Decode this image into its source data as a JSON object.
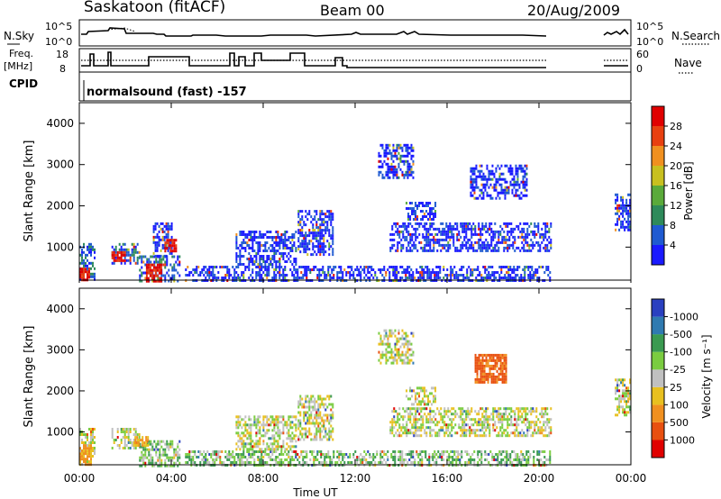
{
  "header": {
    "station": "Saskatoon (fitACF)",
    "beam": "Beam 00",
    "date": "20/Aug/2009"
  },
  "nsky_panel": {
    "left_label": "N.Sky",
    "left_ticks": [
      "10^5",
      "10^0"
    ],
    "right_ticks": [
      "10^5",
      "10^0"
    ],
    "right_label": "N.Search"
  },
  "freq_panel": {
    "left_label_1": "Freq.",
    "left_label_2": "[MHz]",
    "left_ticks": [
      "18",
      "8"
    ],
    "right_ticks": [
      "60",
      "0"
    ],
    "right_label": "Nave"
  },
  "cpid_panel": {
    "label": "CPID",
    "text": "normalsound (fast) -157"
  },
  "chart_data": [
    {
      "type": "heatmap",
      "name": "power",
      "ylabel": "Slant Range [km]",
      "yticks": [
        1000,
        2000,
        3000,
        4000
      ],
      "ylim": [
        200,
        4500
      ],
      "xlim": [
        0,
        24
      ],
      "colorbar_label": "Power [dB]",
      "colorbar_ticks": [
        "4",
        "8",
        "12",
        "16",
        "20",
        "24",
        "28"
      ],
      "colorbar_colors": [
        "#1a1aff",
        "#1f5ad1",
        "#2e8a5a",
        "#5aaa3a",
        "#c8c020",
        "#f09020",
        "#e84010",
        "#e00000"
      ],
      "echo_regions": [
        {
          "t0": 0.0,
          "t1": 0.7,
          "r0": 200,
          "r1": 1100,
          "c": 1
        },
        {
          "t0": 1.4,
          "t1": 2.6,
          "r0": 600,
          "r1": 1100,
          "c": 1
        },
        {
          "t0": 2.6,
          "t1": 4.4,
          "r0": 200,
          "r1": 800,
          "c": 1
        },
        {
          "t0": 3.2,
          "t1": 4.0,
          "r0": 800,
          "r1": 1600,
          "c": 0
        },
        {
          "t0": 4.6,
          "t1": 20.5,
          "r0": 200,
          "r1": 550,
          "c": 0
        },
        {
          "t0": 6.8,
          "t1": 9.4,
          "r0": 550,
          "r1": 1400,
          "c": 0
        },
        {
          "t0": 9.5,
          "t1": 11.0,
          "r0": 800,
          "r1": 1900,
          "c": 0
        },
        {
          "t0": 13.5,
          "t1": 20.5,
          "r0": 900,
          "r1": 1600,
          "c": 0
        },
        {
          "t0": 14.2,
          "t1": 15.5,
          "r0": 1700,
          "r1": 2100,
          "c": 0
        },
        {
          "t0": 13.0,
          "t1": 14.5,
          "r0": 2700,
          "r1": 3500,
          "c": 0
        },
        {
          "t0": 17.0,
          "t1": 19.5,
          "r0": 2200,
          "r1": 3000,
          "c": 0
        },
        {
          "t0": 23.3,
          "t1": 24.0,
          "r0": 1400,
          "r1": 2300,
          "c": 0
        }
      ],
      "hot_spots": [
        {
          "t0": 0.0,
          "t1": 0.4,
          "r0": 200,
          "r1": 500
        },
        {
          "t0": 2.9,
          "t1": 3.6,
          "r0": 200,
          "r1": 600
        },
        {
          "t0": 1.4,
          "t1": 2.0,
          "r0": 700,
          "r1": 900
        },
        {
          "t0": 3.7,
          "t1": 4.2,
          "r0": 900,
          "r1": 1200
        }
      ]
    },
    {
      "type": "heatmap",
      "name": "velocity",
      "ylabel": "Slant Range [km]",
      "yticks": [
        1000,
        2000,
        3000,
        4000
      ],
      "ylim": [
        200,
        4500
      ],
      "xlim": [
        0,
        24
      ],
      "xticks": [
        "00:00",
        "04:00",
        "08:00",
        "12:00",
        "16:00",
        "20:00",
        "00:00"
      ],
      "xlabel": "Time UT",
      "colorbar_label": "Velocity [m s⁻¹]",
      "colorbar_ticks": [
        "1000",
        "500",
        "100",
        "25",
        "-25",
        "-100",
        "-500",
        "-1000"
      ],
      "colorbar_colors": [
        "#2a40c0",
        "#2f7ab0",
        "#3a9a50",
        "#7acc40",
        "#c0c0c0",
        "#e8c020",
        "#f09020",
        "#e85010",
        "#e00000"
      ],
      "echo_regions": [
        {
          "t0": 0.0,
          "t1": 0.7,
          "r0": 200,
          "r1": 1100,
          "c": 4
        },
        {
          "t0": 1.4,
          "t1": 2.6,
          "r0": 600,
          "r1": 1100,
          "c": 4
        },
        {
          "t0": 2.6,
          "t1": 4.4,
          "r0": 200,
          "r1": 800,
          "c": 3
        },
        {
          "t0": 4.6,
          "t1": 20.5,
          "r0": 200,
          "r1": 550,
          "c": 3
        },
        {
          "t0": 6.8,
          "t1": 9.4,
          "r0": 550,
          "r1": 1400,
          "c": 4
        },
        {
          "t0": 9.5,
          "t1": 11.0,
          "r0": 800,
          "r1": 1900,
          "c": 4
        },
        {
          "t0": 13.5,
          "t1": 20.5,
          "r0": 900,
          "r1": 1600,
          "c": 4
        },
        {
          "t0": 14.2,
          "t1": 15.5,
          "r0": 1700,
          "r1": 2100,
          "c": 4
        },
        {
          "t0": 13.0,
          "t1": 14.5,
          "r0": 2700,
          "r1": 3500,
          "c": 4
        },
        {
          "t0": 23.3,
          "t1": 24.0,
          "r0": 1400,
          "r1": 2300,
          "c": 4
        }
      ],
      "hot_spots": [
        {
          "t0": 0.0,
          "t1": 0.5,
          "r0": 200,
          "r1": 700,
          "c": 6
        },
        {
          "t0": 2.4,
          "t1": 3.0,
          "r0": 700,
          "r1": 900,
          "c": 6
        },
        {
          "t0": 17.2,
          "t1": 18.6,
          "r0": 2200,
          "r1": 2900,
          "c": 7
        }
      ]
    }
  ]
}
